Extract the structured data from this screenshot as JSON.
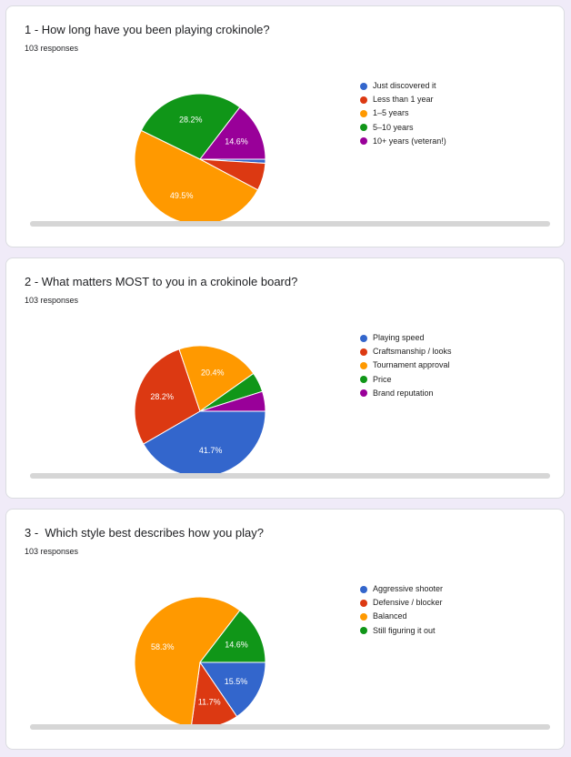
{
  "questions": [
    {
      "title": "1 - How long have you been playing crokinole?",
      "responses": "103 responses",
      "chart_data": {
        "type": "pie",
        "categories": [
          "Just discovered it",
          "Less than 1 year",
          "1–5 years",
          "5–10 years",
          "10+ years (veteran!)"
        ],
        "values": [
          1.0,
          6.8,
          49.5,
          28.2,
          14.6
        ],
        "data_labels": [
          "",
          "",
          "49.5%",
          "28.2%",
          "14.6%"
        ],
        "colors": [
          "#3366cc",
          "#dc3912",
          "#ff9900",
          "#109618",
          "#990099"
        ],
        "legend": "right"
      }
    },
    {
      "title": "2 - What matters MOST to you in a crokinole board?",
      "responses": "103 responses",
      "chart_data": {
        "type": "pie",
        "categories": [
          "Playing speed",
          "Craftsmanship / looks",
          "Tournament approval",
          "Price",
          "Brand reputation"
        ],
        "values": [
          41.7,
          28.2,
          20.4,
          4.9,
          4.9
        ],
        "data_labels": [
          "41.7%",
          "28.2%",
          "20.4%",
          "",
          ""
        ],
        "colors": [
          "#3366cc",
          "#dc3912",
          "#ff9900",
          "#109618",
          "#990099"
        ],
        "legend": "right"
      }
    },
    {
      "title": "3 -  Which style best describes how you play?",
      "responses": "103 responses",
      "chart_data": {
        "type": "pie",
        "categories": [
          "Aggressive shooter",
          "Defensive / blocker",
          "Balanced",
          "Still figuring it out"
        ],
        "values": [
          15.5,
          11.7,
          58.3,
          14.6
        ],
        "data_labels": [
          "15.5%",
          "11.7%",
          "58.3%",
          "14.6%"
        ],
        "colors": [
          "#3366cc",
          "#dc3912",
          "#ff9900",
          "#109618"
        ],
        "legend": "right"
      }
    }
  ]
}
